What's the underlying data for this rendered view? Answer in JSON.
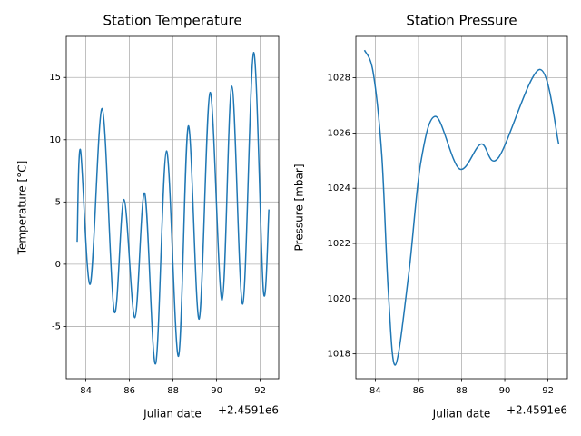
{
  "chart_data": [
    {
      "type": "line",
      "title": "Station Temperature",
      "x_label": "Julian date",
      "x_offset_label": "+2.4591e6",
      "y_label": "Temperature [°C]",
      "x": [
        83.6,
        83.75,
        84.2,
        84.75,
        85.3,
        85.75,
        86.25,
        86.7,
        87.2,
        87.7,
        88.25,
        88.7,
        89.2,
        89.7,
        90.25,
        90.7,
        91.2,
        91.7,
        92.15,
        92.4
      ],
      "series": [
        {
          "name": "Temperature",
          "color": "#1f77b4",
          "values": [
            1.8,
            9.2,
            -1.6,
            12.5,
            -3.8,
            5.2,
            -4.3,
            5.7,
            -8.0,
            9.1,
            -7.4,
            11.1,
            -4.4,
            13.8,
            -2.9,
            14.3,
            -3.2,
            17.0,
            -2.2,
            4.4
          ]
        }
      ],
      "xlim": [
        83.1,
        92.85
      ],
      "xticks": [
        84,
        86,
        88,
        90,
        92
      ],
      "ylim": [
        -9.2,
        18.3
      ],
      "yticks": [
        -5,
        0,
        5,
        10,
        15
      ],
      "grid": true
    },
    {
      "type": "line",
      "title": "Station Pressure",
      "x_label": "Julian date",
      "x_offset_label": "+2.4591e6",
      "y_label": "Pressure [mbar]",
      "x": [
        83.5,
        83.9,
        84.3,
        84.6,
        84.93,
        85.55,
        86.1,
        86.8,
        87.9,
        88.9,
        89.7,
        91.6,
        92.5
      ],
      "series": [
        {
          "name": "Pressure",
          "color": "#1f77b4",
          "values": [
            1029.0,
            1028.2,
            1025.2,
            1020.3,
            1017.6,
            1020.9,
            1024.9,
            1026.6,
            1024.7,
            1025.6,
            1025.1,
            1028.3,
            1025.6
          ]
        }
      ],
      "xlim": [
        83.1,
        92.9
      ],
      "xticks": [
        84,
        86,
        88,
        90,
        92
      ],
      "ylim": [
        1017.1,
        1029.5
      ],
      "yticks": [
        1018,
        1020,
        1022,
        1024,
        1026,
        1028
      ],
      "grid": true
    }
  ]
}
